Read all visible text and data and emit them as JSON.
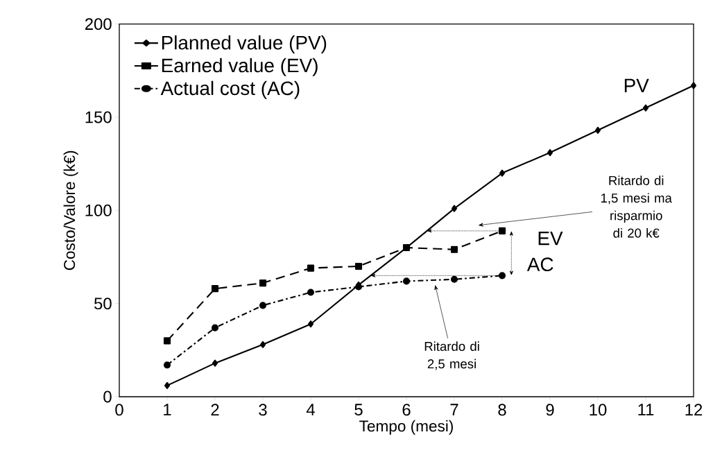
{
  "chart_data": {
    "type": "line",
    "xlabel": "Tempo (mesi)",
    "ylabel": "Costo/Valore (k€)",
    "x": [
      1,
      2,
      3,
      4,
      5,
      6,
      7,
      8,
      9,
      10,
      11,
      12
    ],
    "series": [
      {
        "name": "Planned value (PV)",
        "color": "#000000",
        "marker": "diamond",
        "line_style": "solid",
        "values": [
          6,
          18,
          28,
          39,
          60,
          80,
          101,
          120,
          131,
          143,
          155,
          167
        ]
      },
      {
        "name": "Earned value (EV)",
        "color": "#000000",
        "marker": "square",
        "line_style": "dashed",
        "values": [
          30,
          58,
          61,
          69,
          70,
          80,
          79,
          89,
          null,
          null,
          null,
          null
        ]
      },
      {
        "name": "Actual cost (AC)",
        "color": "#000000",
        "marker": "circle",
        "line_style": "dashdot",
        "values": [
          17,
          37,
          49,
          56,
          59,
          62,
          63,
          65,
          null,
          null,
          null,
          null
        ]
      }
    ],
    "xlim": [
      0,
      12
    ],
    "ylim": [
      0,
      200
    ],
    "xticks": [
      0,
      1,
      2,
      3,
      4,
      5,
      6,
      7,
      8,
      9,
      10,
      11,
      12
    ],
    "yticks": [
      0,
      50,
      100,
      150,
      200
    ],
    "legend": "top left",
    "grid": false,
    "annotations": [
      "PV",
      "EV",
      "AC",
      "Ritardo di 1,5 mesi ma risparmio di 20 k€",
      "Ritardo di 2,5 mesi"
    ]
  }
}
